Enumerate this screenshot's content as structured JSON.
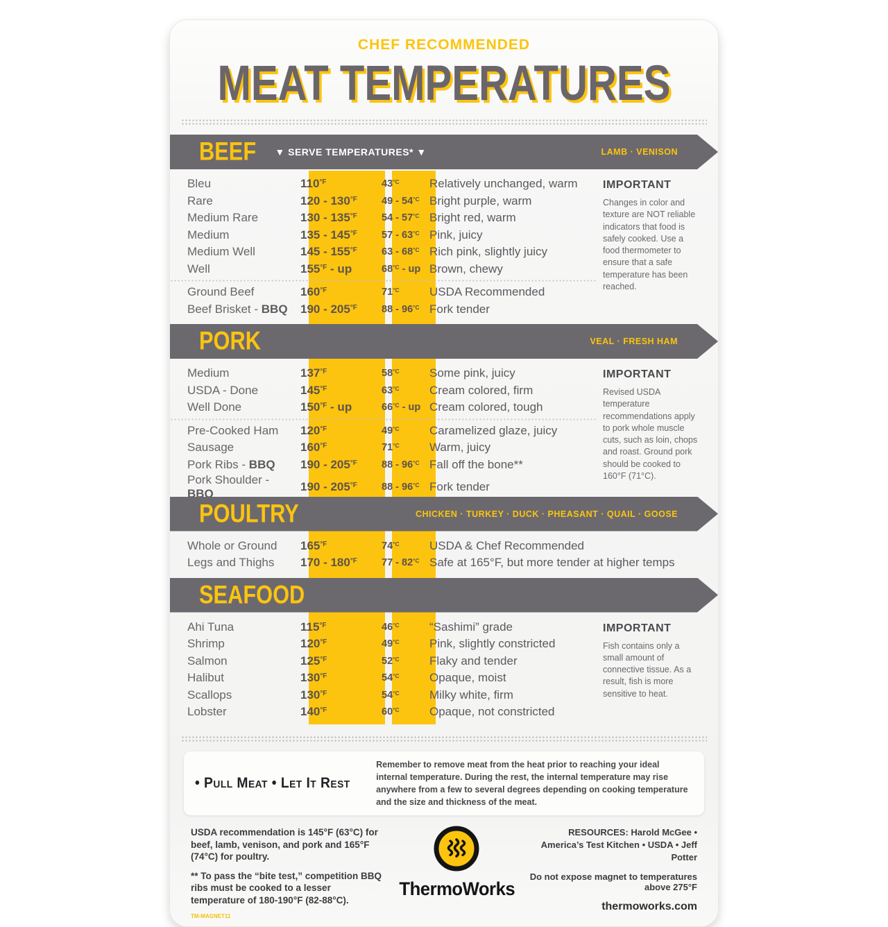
{
  "header": {
    "eyebrow": "CHEF RECOMMENDED",
    "title": "MEAT TEMPERATURES"
  },
  "colors": {
    "accent_yellow": "#fcc40f",
    "banner_gray": "#6c696e",
    "title_gray": "#6a656a",
    "temp_text": "#5e5349"
  },
  "sections": [
    {
      "id": "beef",
      "title": "BEEF",
      "center": "▼  SERVE TEMPERATURES*  ▼",
      "right": "LAMB · VENISON",
      "rows": [
        {
          "name": "Bleu",
          "f": "110°F",
          "c": "43°C",
          "desc": "Relatively unchanged, warm"
        },
        {
          "name": "Rare",
          "f": "120 - 130°F",
          "c": "49 - 54°C",
          "desc": "Bright purple, warm"
        },
        {
          "name": "Medium Rare",
          "f": "130 - 135°F",
          "c": "54 - 57°C",
          "desc": "Bright red, warm"
        },
        {
          "name": "Medium",
          "f": "135 - 145°F",
          "c": "57 - 63°C",
          "desc": "Pink, juicy"
        },
        {
          "name": "Medium Well",
          "f": "145 - 155°F",
          "c": "63 - 68°C",
          "desc": "Rich pink, slightly juicy"
        },
        {
          "name": "Well",
          "f": "155°F - up",
          "c": "68°C - up",
          "desc": "Brown, chewy"
        },
        {
          "divider": true
        },
        {
          "name": "Ground Beef",
          "f": "160°F",
          "c": "71°C",
          "desc": "USDA Recommended"
        },
        {
          "name": "Beef Brisket - BBQ",
          "f": "190 - 205°F",
          "c": "88 - 96°C",
          "desc": "Fork tender"
        }
      ],
      "important": {
        "title": "IMPORTANT",
        "text": "Changes in color and texture are NOT reliable indicators that food is safely cooked. Use a food thermometer to ensure that a safe temperature has been reached."
      }
    },
    {
      "id": "pork",
      "title": "PORK",
      "right": "VEAL · FRESH HAM",
      "rows": [
        {
          "name": "Medium",
          "f": "137°F",
          "c": "58°C",
          "desc": "Some pink, juicy"
        },
        {
          "name": "USDA - Done",
          "f": "145°F",
          "c": "63°C",
          "desc": "Cream colored, firm"
        },
        {
          "name": "Well Done",
          "f": "150°F - up",
          "c": "66°C - up",
          "desc": "Cream colored, tough"
        },
        {
          "divider": true
        },
        {
          "name": "Pre-Cooked Ham",
          "f": "120°F",
          "c": "49°C",
          "desc": "Caramelized glaze, juicy"
        },
        {
          "name": "Sausage",
          "f": "160°F",
          "c": "71°C",
          "desc": "Warm, juicy"
        },
        {
          "name": "Pork Ribs - BBQ",
          "f": "190 - 205°F",
          "c": "88 - 96°C",
          "desc": "Fall off the bone**"
        },
        {
          "name": "Pork Shoulder - BBQ",
          "f": "190 - 205°F",
          "c": "88 - 96°C",
          "desc": "Fork tender"
        }
      ],
      "important": {
        "title": "IMPORTANT",
        "text": "Revised USDA temperature recommendations apply to pork whole muscle cuts, such as loin, chops and roast. Ground pork should be cooked to 160°F (71°C)."
      }
    },
    {
      "id": "poultry",
      "title": "POULTRY",
      "right": "CHICKEN · TURKEY · DUCK · PHEASANT · QUAIL · GOOSE",
      "rows": [
        {
          "name": "Whole or Ground",
          "f": "165°F",
          "c": "74°C",
          "desc": "USDA & Chef Recommended"
        },
        {
          "name": "Legs and Thighs",
          "f": "170 - 180°F",
          "c": "77 - 82°C",
          "desc": "Safe at 165°F, but more tender at higher temps"
        }
      ]
    },
    {
      "id": "seafood",
      "title": "SEAFOOD",
      "rows": [
        {
          "name": "Ahi Tuna",
          "f": "115°F",
          "c": "46°C",
          "desc": "“Sashimi” grade"
        },
        {
          "name": "Shrimp",
          "f": "120°F",
          "c": "49°C",
          "desc": "Pink, slightly constricted"
        },
        {
          "name": "Salmon",
          "f": "125°F",
          "c": "52°C",
          "desc": "Flaky and tender"
        },
        {
          "name": "Halibut",
          "f": "130°F",
          "c": "54°C",
          "desc": "Opaque, moist"
        },
        {
          "name": "Scallops",
          "f": "130°F",
          "c": "54°C",
          "desc": "Milky white, firm"
        },
        {
          "name": "Lobster",
          "f": "140°F",
          "c": "60°C",
          "desc": "Opaque, not constricted"
        }
      ],
      "important": {
        "title": "IMPORTANT",
        "text": "Fish contains only a small amount of connective tissue. As a result, fish is more sensitive to heat."
      }
    }
  ],
  "rest": {
    "label": "• Pull Meat • Let It Rest",
    "text": "Remember to remove meat from the heat prior to reaching your ideal internal temperature. During the rest, the internal temperature may rise anywhere from a few to several degrees depending on cooking temperature and the size and thickness of the meat."
  },
  "footer": {
    "note1": "USDA recommendation is 145°F (63°C) for beef, lamb, venison, and pork  and 165°F (74°C) for poultry.",
    "note2": "** To pass the “bite test,” competition BBQ ribs must be cooked to a lesser temperature of 180-190°F (82-88°C).",
    "sku": "TM-MAGNET11",
    "brand": "ThermoWorks",
    "resources_label": "RESOURCES:",
    "resources_text": "Harold McGee • America’s Test Kitchen • USDA • Jeff Potter",
    "warning": "Do not expose magnet to temperatures above 275°F",
    "website": "thermoworks.com"
  }
}
